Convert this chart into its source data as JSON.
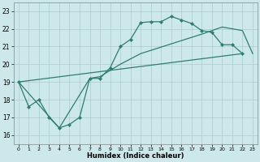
{
  "xlabel": "Humidex (Indice chaleur)",
  "xlim": [
    -0.5,
    23.5
  ],
  "ylim": [
    15.5,
    23.5
  ],
  "xticks": [
    0,
    1,
    2,
    3,
    4,
    5,
    6,
    7,
    8,
    9,
    10,
    11,
    12,
    13,
    14,
    15,
    16,
    17,
    18,
    19,
    20,
    21,
    22,
    23
  ],
  "yticks": [
    16,
    17,
    18,
    19,
    20,
    21,
    22,
    23
  ],
  "bg_color": "#cce8ea",
  "line_color": "#2e7d6e",
  "grid_color": "#aacccc",
  "series0_x": [
    0,
    1,
    2,
    3,
    4,
    5,
    6,
    7,
    8,
    9,
    10,
    11,
    12,
    13,
    14,
    15,
    16,
    17,
    18,
    19,
    20,
    21,
    22
  ],
  "series0_y": [
    19.0,
    17.6,
    18.0,
    17.0,
    16.4,
    16.6,
    17.0,
    19.2,
    19.2,
    19.8,
    21.0,
    21.4,
    22.35,
    22.4,
    22.4,
    22.7,
    22.5,
    22.3,
    21.9,
    21.8,
    21.1,
    21.1,
    20.6
  ],
  "series1_x": [
    0,
    4,
    7,
    8,
    10,
    12,
    15,
    18,
    20,
    22,
    23
  ],
  "series1_y": [
    19.0,
    16.4,
    19.2,
    19.3,
    20.0,
    20.6,
    21.15,
    21.7,
    22.1,
    21.9,
    20.6
  ],
  "series2_x": [
    0,
    22
  ],
  "series2_y": [
    19.0,
    20.6
  ]
}
